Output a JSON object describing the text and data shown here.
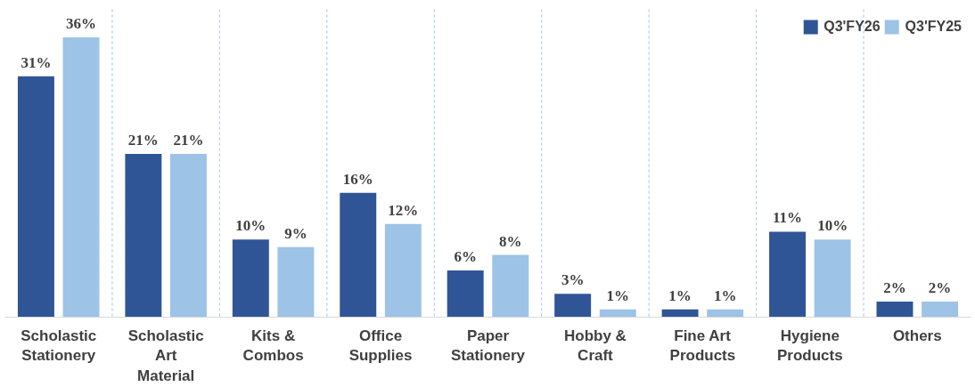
{
  "chart_data": {
    "type": "bar",
    "categories": [
      "Scholastic\nStationery",
      "Scholastic\nArt\nMaterial",
      "Kits &\nCombos",
      "Office\nSupplies",
      "Paper\nStationery",
      "Hobby &\nCraft",
      "Fine Art\nProducts",
      "Hygiene\nProducts",
      "Others"
    ],
    "series": [
      {
        "name": "Q3'FY26",
        "color": "#2f5597",
        "values": [
          31,
          21,
          10,
          16,
          6,
          3,
          1,
          11,
          2
        ],
        "value_labels": [
          "31%",
          "21%",
          "10%",
          "16%",
          "6%",
          "3%",
          "1%",
          "11%",
          "2%"
        ]
      },
      {
        "name": "Q3'FY25",
        "color": "#9dc3e6",
        "values": [
          36,
          21,
          9,
          12,
          8,
          1,
          1,
          10,
          2
        ],
        "value_labels": [
          "36%",
          "21%",
          "9%",
          "12%",
          "8%",
          "1%",
          "1%",
          "10%",
          "2%"
        ]
      }
    ],
    "grid": "x",
    "legend": "top right"
  }
}
